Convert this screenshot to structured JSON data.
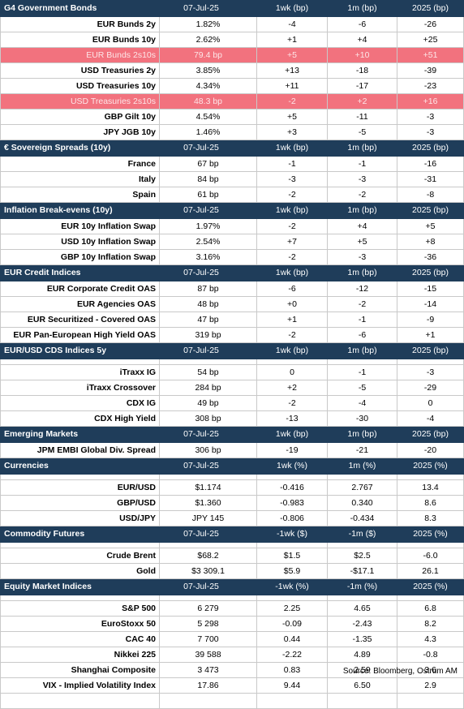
{
  "sections": [
    {
      "title": "G4 Government Bonds",
      "columns": [
        "07-Jul-25",
        "1wk (bp)",
        "1m (bp)",
        "2025 (bp)"
      ],
      "rows": [
        {
          "label": "EUR Bunds 2y",
          "values": [
            "1.82%",
            "-4",
            "-6",
            "-26"
          ]
        },
        {
          "label": "EUR Bunds 10y",
          "values": [
            "2.62%",
            "+1",
            "+4",
            "+25"
          ]
        },
        {
          "label": "EUR Bunds 2s10s",
          "values": [
            "79.4 bp",
            "+5",
            "+10",
            "+51"
          ],
          "highlight": true
        },
        {
          "label": "USD Treasuries 2y",
          "values": [
            "3.85%",
            "+13",
            "-18",
            "-39"
          ]
        },
        {
          "label": "USD Treasuries 10y",
          "values": [
            "4.34%",
            "+11",
            "-17",
            "-23"
          ]
        },
        {
          "label": "USD Treasuries 2s10s",
          "values": [
            "48.3 bp",
            "-2",
            "+2",
            "+16"
          ],
          "highlight": true
        },
        {
          "label": "GBP Gilt 10y",
          "values": [
            "4.54%",
            "+5",
            "-11",
            "-3"
          ]
        },
        {
          "label": "JPY JGB  10y",
          "values": [
            "1.46%",
            "+3",
            "-5",
            "-3"
          ]
        }
      ]
    },
    {
      "title": "€ Sovereign Spreads (10y)",
      "columns": [
        "07-Jul-25",
        "1wk (bp)",
        "1m (bp)",
        "2025 (bp)"
      ],
      "rows": [
        {
          "label": "France",
          "values": [
            "67 bp",
            "-1",
            "-1",
            "-16"
          ]
        },
        {
          "label": "Italy",
          "values": [
            "84 bp",
            "-3",
            "-3",
            "-31"
          ]
        },
        {
          "label": "Spain",
          "values": [
            "61 bp",
            "-2",
            "-2",
            "-8"
          ]
        }
      ]
    },
    {
      "title": "Inflation Break-evens (10y)",
      "columns": [
        "07-Jul-25",
        "1wk (bp)",
        "1m (bp)",
        "2025 (bp)"
      ],
      "rows": [
        {
          "label": "EUR 10y Inflation Swap",
          "values": [
            "1.97%",
            "-2",
            "+4",
            "+5"
          ]
        },
        {
          "label": "USD 10y Inflation Swap",
          "values": [
            "2.54%",
            "+7",
            "+5",
            "+8"
          ]
        },
        {
          "label": "GBP 10y Inflation Swap",
          "values": [
            "3.16%",
            "-2",
            "-3",
            "-36"
          ]
        }
      ]
    },
    {
      "title": "EUR Credit Indices",
      "columns": [
        "07-Jul-25",
        "1wk (bp)",
        "1m (bp)",
        "2025 (bp)"
      ],
      "rows": [
        {
          "label": "EUR Corporate Credit OAS",
          "values": [
            "87 bp",
            "-6",
            "-12",
            "-15"
          ]
        },
        {
          "label": "EUR Agencies OAS",
          "values": [
            "48 bp",
            "+0",
            "-2",
            "-14"
          ]
        },
        {
          "label": "EUR Securitized - Covered OAS",
          "values": [
            "47 bp",
            "+1",
            "-1",
            "-9"
          ]
        },
        {
          "label": "EUR Pan-European High Yield OAS",
          "values": [
            "319 bp",
            "-2",
            "-6",
            "+1"
          ]
        }
      ]
    },
    {
      "title": "EUR/USD CDS Indices 5y",
      "columns": [
        "07-Jul-25",
        "1wk (bp)",
        "1m (bp)",
        "2025 (bp)"
      ],
      "gap": true,
      "rows": [
        {
          "label": "iTraxx IG",
          "values": [
            "54 bp",
            "0",
            "-1",
            "-3"
          ]
        },
        {
          "label": "iTraxx Crossover",
          "values": [
            "284 bp",
            "+2",
            "-5",
            "-29"
          ]
        },
        {
          "label": "CDX IG",
          "values": [
            "49 bp",
            "-2",
            "-4",
            "0"
          ]
        },
        {
          "label": "CDX High Yield",
          "values": [
            "308 bp",
            "-13",
            "-30",
            "-4"
          ]
        }
      ]
    },
    {
      "title": "Emerging Markets",
      "columns": [
        "07-Jul-25",
        "1wk (bp)",
        "1m (bp)",
        "2025 (bp)"
      ],
      "rows": [
        {
          "label": "JPM EMBI Global Div. Spread",
          "values": [
            "306 bp",
            "-19",
            "-21",
            "-20"
          ]
        }
      ]
    },
    {
      "title": "Currencies",
      "columns": [
        "07-Jul-25",
        "1wk (%)",
        "1m (%)",
        "2025 (%)"
      ],
      "gap": true,
      "rows": [
        {
          "label": "EUR/USD",
          "values": [
            "$1.174",
            "-0.416",
            "2.767",
            "13.4"
          ]
        },
        {
          "label": "GBP/USD",
          "values": [
            "$1.360",
            "-0.983",
            "0.340",
            "8.6"
          ]
        },
        {
          "label": "USD/JPY",
          "values": [
            "JPY 145",
            "-0.806",
            "-0.434",
            "8.3"
          ]
        }
      ]
    },
    {
      "title": "Commodity Futures",
      "columns": [
        "07-Jul-25",
        "-1wk ($)",
        "-1m ($)",
        "2025 (%)"
      ],
      "gap": true,
      "rows": [
        {
          "label": "Crude Brent",
          "values": [
            "$68.2",
            "$1.5",
            "$2.5",
            "-6.0"
          ]
        },
        {
          "label": "Gold",
          "values": [
            "$3 309.1",
            "$5.9",
            "-$17.1",
            "26.1"
          ]
        }
      ]
    },
    {
      "title": "Equity Market Indices",
      "columns": [
        "07-Jul-25",
        "-1wk (%)",
        "-1m (%)",
        "2025 (%)"
      ],
      "gap": true,
      "rows": [
        {
          "label": "S&P 500",
          "values": [
            "6 279",
            "2.25",
            "4.65",
            "6.8"
          ]
        },
        {
          "label": "EuroStoxx 50",
          "values": [
            "5 298",
            "-0.09",
            "-2.43",
            "8.2"
          ]
        },
        {
          "label": "CAC 40",
          "values": [
            "7 700",
            "0.44",
            "-1.35",
            "4.3"
          ]
        },
        {
          "label": "Nikkei 225",
          "values": [
            "39 588",
            "-2.22",
            "4.89",
            "-0.8"
          ]
        },
        {
          "label": "Shanghai Composite",
          "values": [
            "3 473",
            "0.83",
            "2.59",
            "3.6"
          ]
        },
        {
          "label": "VIX - Implied Volatility Index",
          "values": [
            "17.86",
            "9.44",
            "6.50",
            "2.9"
          ]
        }
      ]
    }
  ],
  "source": "Source: Bloomberg, Ostrum AM",
  "colors": {
    "header": "#1f3d5a",
    "highlight": "#f2727e",
    "header_text": "#ffffff"
  }
}
